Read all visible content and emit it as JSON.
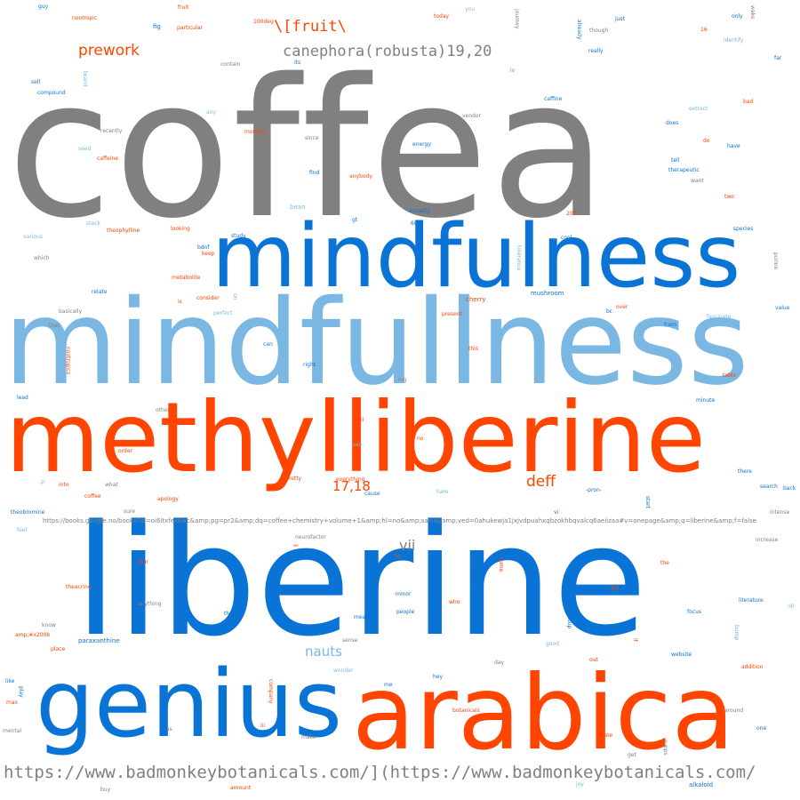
{
  "colors": {
    "gray": "#808080",
    "blue": "#0a73d6",
    "lightblue": "#7ab8e3",
    "orange": "#ff4500"
  },
  "words": {
    "coffea": "coffea",
    "mindfulness": "mindfulness",
    "mindfullness": "mindfullness",
    "methylliberine": "methylliberine",
    "liberine": "liberine",
    "genius": "genius",
    "arabica": "arabica",
    "url_bottom": "https://www.badmonkeybotanicals.com/](https://www.badmonkeybotanicals.com/",
    "canephora": "canephora(robusta)19,20",
    "fruit": "\\[fruit\\",
    "prework": "prework",
    "deff": "deff",
    "r1718": "17,18",
    "nauts": "nauts",
    "vii": "vii",
    "books_url": "https://books.google.no/books?id=oi6ltxfekkwc&amp;pg=pr2&amp;dq=coffee+chemistry+volume+1&amp;hl=no&amp;sa=x&amp;ved=0ahukewja1jxjvdpuahxqbzokhbqvalcq6aeiizaa#v=onepage&amp;q=liberine&amp;f=false",
    "guy": "guy",
    "fruit_s": "fruit",
    "today": "today",
    "you": "you",
    "journey": "journey",
    "wake": "wake",
    "nootropic": "nootropic",
    "fig": "fig",
    "particular": "particular",
    "loddeg": "100deg",
    "already": "already",
    "just": "just",
    "only": "only",
    "though": "though",
    "n16": "16",
    "identify": "identify",
    "really": "really",
    "far": "far",
    "sell": "sell",
    "brand": "brand",
    "contain": "contain",
    "its": "its",
    "iv": "iv",
    "compound": "compound",
    "caffine": "caffine",
    "extract": "extract",
    "bad": "bad",
    "any": "any",
    "vendor": "vendor",
    "does": "does",
    "recently": "recently",
    "monkey": "monkey",
    "since": "since",
    "energy": "energy",
    "do": "do",
    "have": "have",
    "seed": "seed",
    "caffeine": "caffeine",
    "tell": "tell",
    "therapeutic": "therapeutic",
    "want": "want",
    "find": "find",
    "anybody": "anybody",
    "two": "two",
    "bean": "bean",
    "actually": "actually",
    "n200": "200",
    "gt": "gt",
    "n60": "60",
    "stack": "stack",
    "theophylline": "theophylline",
    "looking": "looking",
    "species": "species",
    "various": "various",
    "study": "study",
    "cool": "cool",
    "bdnf": "bdnf",
    "keep": "keep",
    "which": "which",
    "purine": "purine",
    "metabolite": "metabolite",
    "tolerance": "tolerance",
    "maybe": "maybe",
    "relate": "relate",
    "consider": "consider",
    "on": "on",
    "mushroom": "mushroom",
    "cherry": "cherry",
    "value": "value",
    "basically": "basically",
    "perfect": "perfect",
    "present": "present",
    "bc": "bc",
    "over": "over",
    "fascinate": "fascinate",
    "that": "that",
    "nootropics": "nootropics",
    "can": "can",
    "this": "this",
    "from": "from",
    "right": "right",
    "table": "table",
    "mg": "mg",
    "lead": "lead",
    "minute": "minute",
    "other": "other",
    "ii": "ii",
    "see": "see",
    "no": "no",
    "order": "order",
    "there": "there",
    "pretty": "pretty",
    "everything": "everything",
    "is": "is",
    "into": "into",
    "what": "what",
    "cause": "cause",
    "hare": "hare",
    "pron": "-pron-",
    "search": "search",
    "back": "back",
    "coffee": "coffee",
    "apology": "apology",
    "theobromine": "theobromine",
    "sure": "sure",
    "vi": "vi",
    "start": "start",
    "intense": "intense",
    "feel": "feel",
    "neurofactor": "neurofactor",
    "increase": "increase",
    "my": "my",
    "we": "we",
    "n70": "70",
    "four": "four",
    "some": "some",
    "the": "the",
    "theacrine": "theacrine",
    "minor": "minor",
    "dig": "dig",
    "literature": "literature",
    "who": "who",
    "anything": "anything",
    "people": "people",
    "buildup": "buildup",
    "focus": "focus",
    "up": "up",
    "know": "know",
    "then": "then",
    "mean": "mean",
    "bump": "bump",
    "amp200b": "amp;#x200b",
    "sense": "sense",
    "good": "good",
    "if": "if",
    "place": "place",
    "website": "website",
    "paraxanthine": "paraxanthine",
    "out": "out",
    "day": "day",
    "addition": "addition",
    "wonder": "wonder",
    "like": "like",
    "play": "play",
    "hey": "hey",
    "company": "company",
    "me": "me",
    "max": "max",
    "botanicals": "botanicals",
    "around": "around",
    "one": "one",
    "mental": "mental",
    "as": "as",
    "iii": "iii",
    "make": "make",
    "state": "state",
    "supps": "supps",
    "get": "get",
    "buy": "buy",
    "amount": "amount",
    "joy": "joy",
    "alkaloid": "alkaloid"
  }
}
